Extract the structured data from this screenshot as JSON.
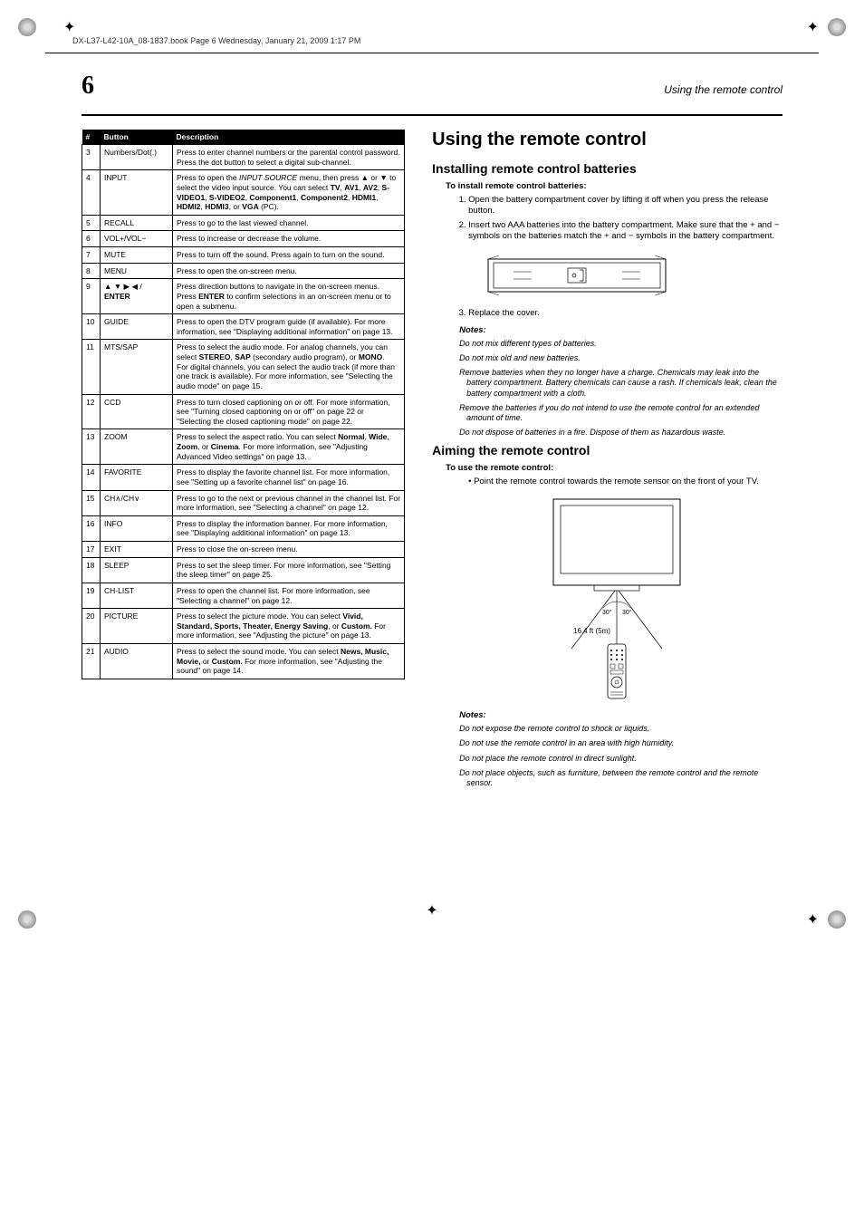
{
  "header_line": "DX-L37-L42-10A_08-1837.book  Page 6  Wednesday, January 21, 2009  1:17 PM",
  "page_number": "6",
  "header_right": "Using the remote control",
  "table": {
    "headers": [
      "#",
      "Button",
      "Description"
    ],
    "rows": [
      [
        "3",
        "Numbers/Dot(.)",
        "Press to enter channel numbers or the parental control password. Press the dot button to select a digital sub-channel."
      ],
      [
        "4",
        "INPUT",
        "Press to open the <i>INPUT SOURCE</i> menu, then press ▲ or ▼ to select the video input source. You can select <b>TV</b>, <b>AV1</b>, <b>AV2</b>, <b>S-VIDEO1</b>, <b>S-VIDEO2</b>, <b>Component1</b>, <b>Component2</b>, <b>HDMI1</b>, <b>HDMI2</b>, <b>HDMI3</b>, or <b>VGA</b> (PC)."
      ],
      [
        "5",
        "RECALL",
        "Press to go to the last viewed channel."
      ],
      [
        "6",
        "VOL+/VOL−",
        "Press to increase or decrease the volume."
      ],
      [
        "7",
        "MUTE",
        "Press to turn off the sound. Press again to turn on the sound."
      ],
      [
        "8",
        "MENU",
        "Press to open the on-screen menu."
      ],
      [
        "9",
        "▲ ▼ ▶ ◀ / <b>ENTER</b>",
        "Press direction buttons to navigate in the on-screen menus. Press <b>ENTER</b> to confirm selections in an on-screen menu or to open a submenu."
      ],
      [
        "10",
        "GUIDE",
        "Press to open the DTV program guide (if available). For more information, see \"Displaying additional information\" on page 13."
      ],
      [
        "11",
        "MTS/SAP",
        "Press to select the audio mode. For analog channels, you can select <b>STEREO</b>, <b>SAP</b> (secondary audio program), or <b>MONO</b>.<br>For digital channels, you can select the audio track (if more than one track is available). For more information, see \"Selecting the audio mode\" on page 15."
      ],
      [
        "12",
        "CCD",
        "Press to turn closed captioning on or off. For more information, see \"Turning closed captioning on or off\" on page 22 or \"Selecting the closed captioning mode\" on page 22."
      ],
      [
        "13",
        "ZOOM",
        "Press to select the aspect ratio. You can select <b>Normal</b>, <b>Wide</b>, <b>Zoom</b>, or <b>Cinema</b>. For more information, see \"Adjusting Advanced Video settings\" on page 13."
      ],
      [
        "14",
        "FAVORITE",
        "Press to display the favorite channel list. For more information, see \"Setting up a favorite channel list\" on page 16."
      ],
      [
        "15",
        "CH∧/CH∨",
        "Press to go to the next or previous channel in the channel list. For more information, see \"Selecting a channel\" on page 12."
      ],
      [
        "16",
        "INFO",
        "Press to display the information banner. For more information, see \"Displaying additional information\" on page 13."
      ],
      [
        "17",
        "EXIT",
        "Press to close the on-screen menu."
      ],
      [
        "18",
        "SLEEP",
        "Press to set the sleep timer. For more information, see \"Setting the sleep timer\" on page 25."
      ],
      [
        "19",
        "CH-LIST",
        "Press to open the channel list. For more information, see \"Selecting a channel\" on page 12."
      ],
      [
        "20",
        "PICTURE",
        "Press to select the picture mode. You can select <b>Vivid, Standard, Sports, Theater, Energy Saving</b>, or <b>Custom.</b> For more information, see \"Adjusting the picture\" on page 13."
      ],
      [
        "21",
        "AUDIO",
        "Press to select the sound mode. You can select <b>News, Music, Movie,</b> or <b>Custom.</b> For more information, see \"Adjusting the sound\" on page 14."
      ]
    ]
  },
  "h1": "Using the remote control",
  "h2_install": "Installing remote control batteries",
  "install_sub": "To install remote control batteries:",
  "install_steps": [
    "Open the battery compartment cover by lifting it off when you press the release button.",
    "Insert two AAA batteries into the battery compartment. Make sure that the + and − symbols on the batteries match the + and − symbols in the battery compartment."
  ],
  "step3": "Replace the cover.",
  "notes_label": "Notes:",
  "install_notes": [
    "Do not mix different types of batteries.",
    "Do not mix old and new batteries.",
    "Remove batteries when they no longer have a charge. Chemicals may leak into the battery compartment. Battery chemicals can cause a rash. If chemicals leak, clean the battery compartment with a cloth.",
    "Remove the batteries if you do not intend to use the remote control for an extended amount of time.",
    "Do not dispose of batteries in a fire. Dispose of them as hazardous waste."
  ],
  "h2_aiming": "Aiming the remote control",
  "aiming_sub": "To use the remote control:",
  "aiming_bullet": "Point the remote control towards the remote sensor on the front of your TV.",
  "distance_label": "16.4 ft (5m)",
  "angle_left": "30°",
  "angle_right": "30°",
  "aiming_notes": [
    "Do not expose the remote control to shock or liquids.",
    "Do not use the remote control in an area with high humidity.",
    "Do not place the remote control in direct sunlight.",
    "Do not place objects, such as furniture, between the remote control and the remote sensor."
  ]
}
